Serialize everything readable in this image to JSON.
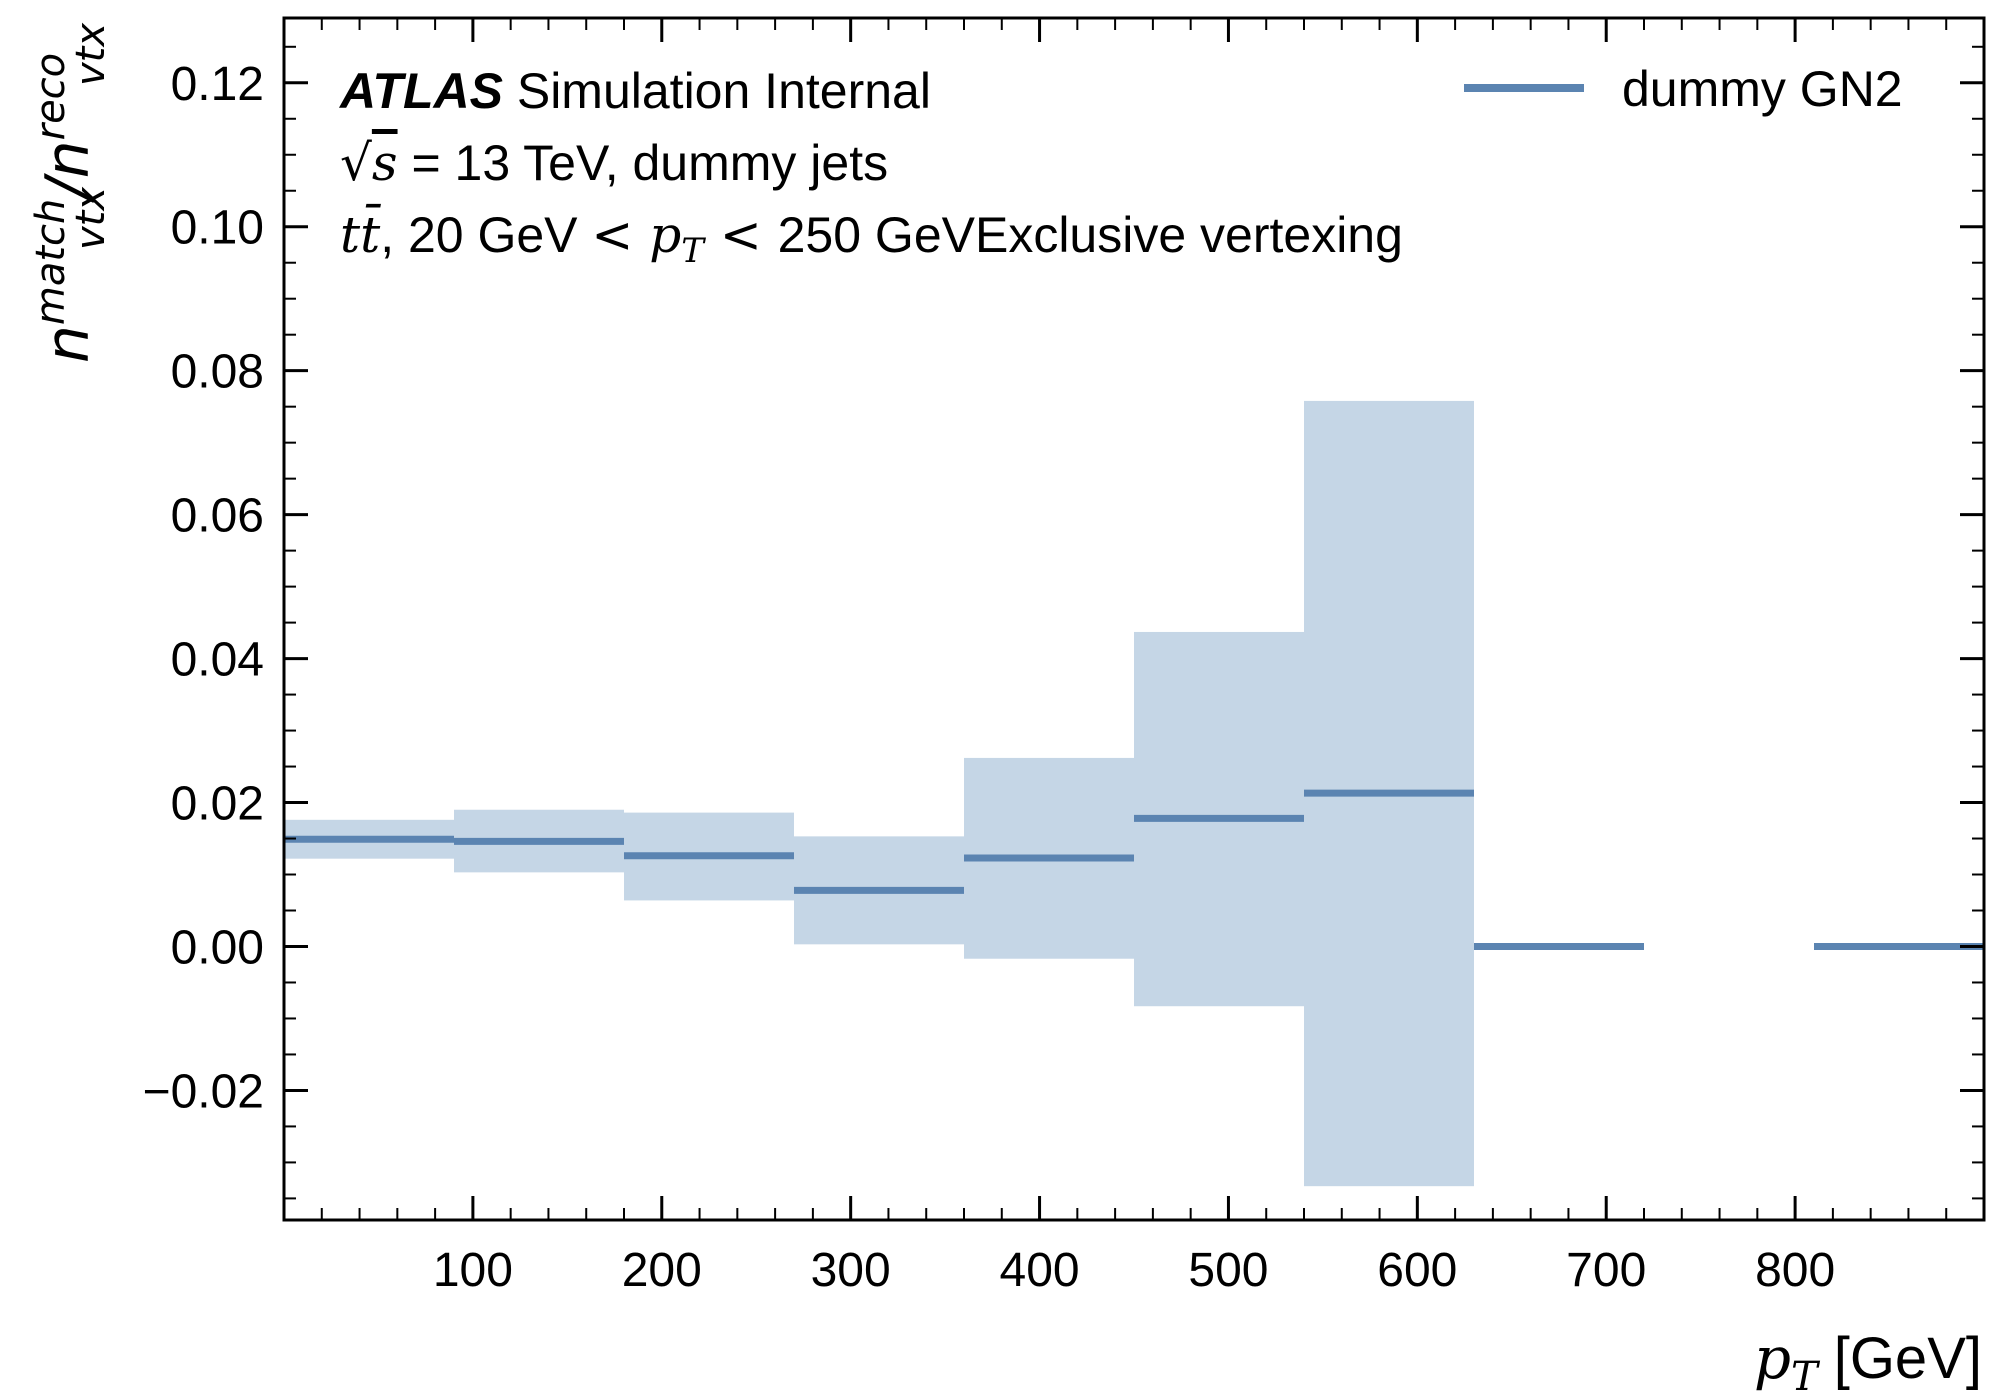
{
  "chart_data": {
    "type": "step",
    "xlabel": {
      "main": "p",
      "sub": "T",
      "unit": "[GeV]"
    },
    "ylabel": {
      "n1": "n",
      "sup1": "match",
      "sub1": "vtx",
      "slash": "/",
      "n2": "n",
      "sup2": "reco",
      "sub2": "vtx"
    },
    "xlim": [
      0,
      900
    ],
    "ylim": [
      -0.038,
      0.129
    ],
    "x_major_ticks": [
      100,
      200,
      300,
      400,
      500,
      600,
      700,
      800
    ],
    "x_minor_step": 20,
    "y_major_ticks": [
      -0.02,
      0.0,
      0.02,
      0.04,
      0.06,
      0.08,
      0.1,
      0.12
    ],
    "y_tick_labels": [
      "−0.02",
      "0.00",
      "0.02",
      "0.04",
      "0.06",
      "0.08",
      "0.10",
      "0.12"
    ],
    "y_minor_step": 0.005,
    "bins": [
      {
        "x0": 0,
        "x1": 90,
        "y": 0.0149,
        "lo": 0.0122,
        "hi": 0.0176
      },
      {
        "x0": 90,
        "x1": 180,
        "y": 0.0146,
        "lo": 0.0103,
        "hi": 0.019
      },
      {
        "x0": 180,
        "x1": 270,
        "y": 0.0126,
        "lo": 0.0064,
        "hi": 0.0186
      },
      {
        "x0": 270,
        "x1": 360,
        "y": 0.0078,
        "lo": 0.0003,
        "hi": 0.0153
      },
      {
        "x0": 360,
        "x1": 450,
        "y": 0.0123,
        "lo": -0.0017,
        "hi": 0.0262
      },
      {
        "x0": 450,
        "x1": 540,
        "y": 0.0178,
        "lo": -0.0083,
        "hi": 0.0437
      },
      {
        "x0": 540,
        "x1": 630,
        "y": 0.0213,
        "lo": -0.0333,
        "hi": 0.0758
      },
      {
        "x0": 630,
        "x1": 720,
        "y": 0.0,
        "lo": null,
        "hi": null
      },
      {
        "x0": 810,
        "x1": 900,
        "y": 0.0,
        "lo": null,
        "hi": null
      }
    ],
    "line_color": "#5b84b1",
    "band_color": "#c5d6e6",
    "legend": {
      "label": "dummy GN2",
      "position": "top-right"
    },
    "annotations": {
      "atlas_bold": "ATLAS",
      "atlas_rest": " Simulation Internal",
      "energy_sqrt": "√",
      "energy_s": "s",
      "energy_eq": " = 13 TeV, dummy jets",
      "sample_tt": "t",
      "sample_tbar": "t̄",
      "sample_mid": ", 20 GeV ",
      "sample_lt1": " < ",
      "sample_p": "p",
      "sample_T": "T",
      "sample_lt2": " < ",
      "sample_end": "250 GeVExclusive vertexing"
    }
  }
}
